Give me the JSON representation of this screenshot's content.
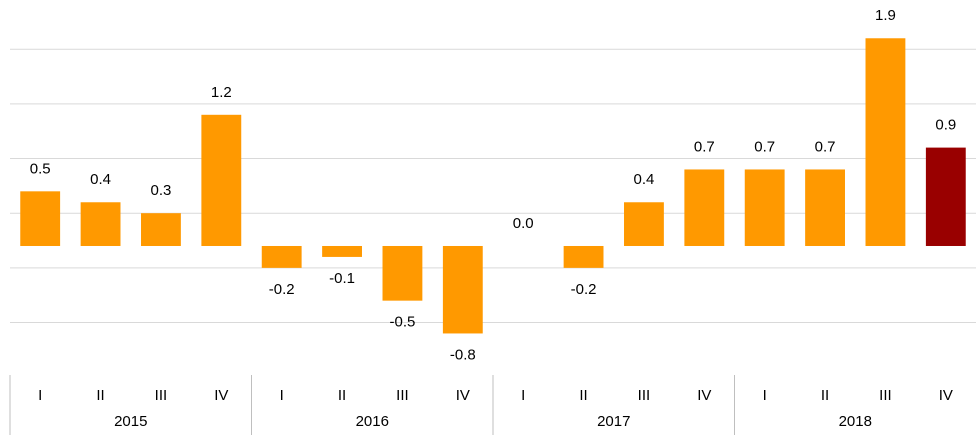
{
  "chart_data": {
    "type": "bar",
    "categories": [
      "I",
      "II",
      "III",
      "IV",
      "I",
      "II",
      "III",
      "IV",
      "I",
      "II",
      "III",
      "IV",
      "I",
      "II",
      "III",
      "IV"
    ],
    "groups": [
      "2015",
      "2016",
      "2017",
      "2018"
    ],
    "values": [
      0.5,
      0.4,
      0.3,
      1.2,
      -0.2,
      -0.1,
      -0.5,
      -0.8,
      0.0,
      -0.2,
      0.4,
      0.7,
      0.7,
      0.7,
      1.9,
      0.9
    ],
    "value_labels": [
      "0.5",
      "0.4",
      "0.3",
      "1.2",
      "-0.2",
      "-0.1",
      "-0.5",
      "-0.8",
      "0.0",
      "-0.2",
      "0.4",
      "0.7",
      "0.7",
      "0.7",
      "1.9",
      "0.9"
    ],
    "colors": [
      "#ff9900",
      "#ff9900",
      "#ff9900",
      "#ff9900",
      "#ff9900",
      "#ff9900",
      "#ff9900",
      "#ff9900",
      "#ff9900",
      "#ff9900",
      "#ff9900",
      "#ff9900",
      "#ff9900",
      "#ff9900",
      "#ff9900",
      "#990000"
    ],
    "ylim": [
      -1.18,
      2.25
    ],
    "yticks": [
      -0.7,
      -0.2,
      0.3,
      0.8,
      1.3,
      1.8
    ],
    "grid": true
  }
}
